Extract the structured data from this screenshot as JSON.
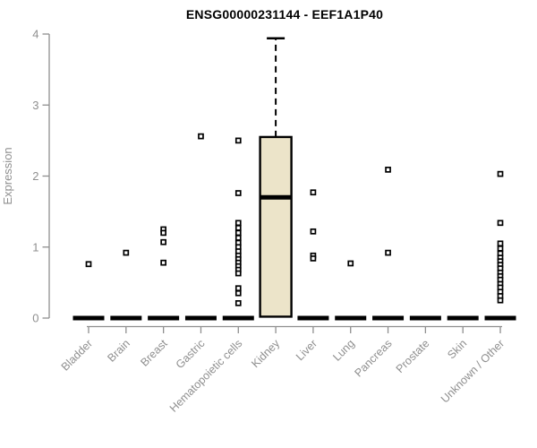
{
  "chart_data": {
    "type": "boxplot",
    "title": "ENSG00000231144 - EEF1A1P40",
    "xlabel": "",
    "ylabel": "Expression",
    "ylim": [
      0,
      4
    ],
    "yticks": [
      0,
      1,
      2,
      3,
      4
    ],
    "grid": false,
    "legend": "none",
    "categories": [
      "Bladder",
      "Brain",
      "Breast",
      "Gastric",
      "Hematopoietic cells",
      "Kidney",
      "Liver",
      "Lung",
      "Pancreas",
      "Prostate",
      "Skin",
      "Unknown / Other"
    ],
    "boxes": [
      {
        "category": "Bladder",
        "q1": 0,
        "median": 0,
        "q3": 0,
        "whisker_low": 0,
        "whisker_high": 0,
        "outliers": [
          0.76
        ]
      },
      {
        "category": "Brain",
        "q1": 0,
        "median": 0,
        "q3": 0,
        "whisker_low": 0,
        "whisker_high": 0,
        "outliers": [
          0.92
        ]
      },
      {
        "category": "Breast",
        "q1": 0,
        "median": 0,
        "q3": 0,
        "whisker_low": 0,
        "whisker_high": 0,
        "outliers": [
          1.25,
          1.2,
          1.07,
          0.78
        ]
      },
      {
        "category": "Gastric",
        "q1": 0,
        "median": 0,
        "q3": 0,
        "whisker_low": 0,
        "whisker_high": 0,
        "outliers": [
          2.56
        ]
      },
      {
        "category": "Hematopoietic cells",
        "q1": 0,
        "median": 0,
        "q3": 0,
        "whisker_low": 0,
        "whisker_high": 0,
        "outliers": [
          2.5,
          1.76,
          1.34,
          1.27,
          1.2,
          1.13,
          1.06,
          1.0,
          0.94,
          0.88,
          0.83,
          0.78,
          0.73,
          0.68,
          0.63,
          0.42,
          0.35,
          0.21
        ]
      },
      {
        "category": "Kidney",
        "q1": 0.02,
        "median": 1.7,
        "q3": 2.55,
        "whisker_low": 0.02,
        "whisker_high": 3.94,
        "outliers": []
      },
      {
        "category": "Liver",
        "q1": 0,
        "median": 0,
        "q3": 0,
        "whisker_low": 0,
        "whisker_high": 0,
        "outliers": [
          1.77,
          1.22,
          0.88,
          0.84
        ]
      },
      {
        "category": "Lung",
        "q1": 0,
        "median": 0,
        "q3": 0,
        "whisker_low": 0,
        "whisker_high": 0,
        "outliers": [
          0.77
        ]
      },
      {
        "category": "Pancreas",
        "q1": 0,
        "median": 0,
        "q3": 0,
        "whisker_low": 0,
        "whisker_high": 0,
        "outliers": [
          2.09,
          0.92
        ]
      },
      {
        "category": "Prostate",
        "q1": 0,
        "median": 0,
        "q3": 0,
        "whisker_low": 0,
        "whisker_high": 0,
        "outliers": []
      },
      {
        "category": "Skin",
        "q1": 0,
        "median": 0,
        "q3": 0,
        "whisker_low": 0,
        "whisker_high": 0,
        "outliers": []
      },
      {
        "category": "Unknown / Other",
        "q1": 0,
        "median": 0,
        "q3": 0,
        "whisker_low": 0,
        "whisker_high": 0,
        "outliers": [
          2.03,
          1.34,
          1.05,
          0.98,
          0.91,
          0.85,
          0.8,
          0.75,
          0.7,
          0.64,
          0.59,
          0.54,
          0.48,
          0.43,
          0.37,
          0.31,
          0.25
        ]
      }
    ],
    "style": {
      "box_fill": "#ece4c9",
      "box_stroke": "#000000",
      "median_color": "#000000",
      "whisker_color": "#000000",
      "whisker_style": "dashed",
      "outlier_marker": "open-square",
      "outlier_color": "#000000",
      "axis_color": "#8f8f8f",
      "label_color": "#8f8f8f",
      "title_color": "#000000",
      "background": "#ffffff"
    }
  }
}
